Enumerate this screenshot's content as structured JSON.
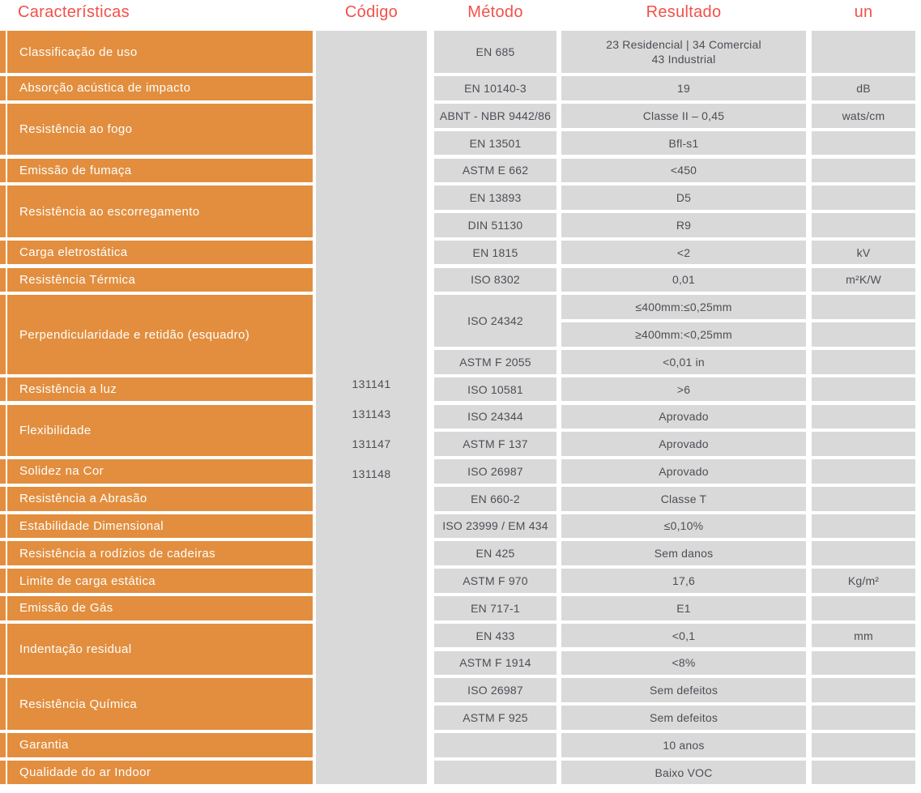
{
  "headers": {
    "caracteristicas": "Características",
    "codigo": "Código",
    "metodo": "Método",
    "resultado": "Resultado",
    "un": "un"
  },
  "colors": {
    "orange": "#E28E3E",
    "header_red": "#F2504A",
    "cell_gray": "#D9D9D9",
    "cell_text": "#4D4E55",
    "white": "#FFFFFF"
  },
  "codigo_codes": [
    "131141",
    "131143",
    "131147",
    "131148"
  ],
  "groups": [
    {
      "characteristic": "Classificação de uso",
      "entries": [
        {
          "method": "EN 685",
          "result_lines": [
            "23 Residencial | 34 Comercial",
            "43 Industrial"
          ],
          "unit": ""
        }
      ]
    },
    {
      "characteristic": "Absorção acústica de impacto",
      "entries": [
        {
          "method": "EN 10140-3",
          "result": "19",
          "unit": "dB"
        }
      ]
    },
    {
      "characteristic": "Resistência ao fogo",
      "entries": [
        {
          "method": "ABNT - NBR 9442/86",
          "result": "Classe II – 0,45",
          "unit": "wats/cm"
        },
        {
          "method": "EN 13501",
          "result": "Bfl-s1",
          "unit": ""
        }
      ]
    },
    {
      "characteristic": "Emissão de fumaça",
      "entries": [
        {
          "method": "ASTM E 662",
          "result": "<450",
          "unit": ""
        }
      ]
    },
    {
      "characteristic": "Resistência ao escorregamento",
      "entries": [
        {
          "method": "EN 13893",
          "result": "D5",
          "unit": ""
        },
        {
          "method": "DIN 51130",
          "result": "R9",
          "unit": ""
        }
      ]
    },
    {
      "characteristic": "Carga eletrostática",
      "entries": [
        {
          "method": "EN 1815",
          "result": "<2",
          "unit": "kV"
        }
      ]
    },
    {
      "characteristic": "Resistência Térmica",
      "entries": [
        {
          "method": "ISO 8302",
          "result": "0,01",
          "unit": "m²K/W"
        }
      ]
    },
    {
      "characteristic": "Perpendicularidade e retidão (esquadro)",
      "entries": [
        {
          "method": "ISO 24342",
          "method_rowspan": 2,
          "result": "≤400mm:≤0,25mm",
          "unit": ""
        },
        {
          "method": null,
          "result": "≥400mm:<0,25mm",
          "unit": ""
        },
        {
          "method": "ASTM F 2055",
          "result": "<0,01 in",
          "unit": ""
        }
      ]
    },
    {
      "characteristic": "Resistência a luz",
      "entries": [
        {
          "method": "ISO 10581",
          "result": ">6",
          "unit": ""
        }
      ]
    },
    {
      "characteristic": "Flexibilidade",
      "entries": [
        {
          "method": "ISO 24344",
          "result": "Aprovado",
          "unit": ""
        },
        {
          "method": "ASTM F 137",
          "result": "Aprovado",
          "unit": ""
        }
      ]
    },
    {
      "characteristic": "Solidez na Cor",
      "entries": [
        {
          "method": "ISO 26987",
          "result": "Aprovado",
          "unit": ""
        }
      ]
    },
    {
      "characteristic": "Resistência a Abrasão",
      "entries": [
        {
          "method": "EN 660-2",
          "result": "Classe T",
          "unit": ""
        }
      ]
    },
    {
      "characteristic": "Estabilidade Dimensional",
      "entries": [
        {
          "method": "ISO 23999 / EM 434",
          "result": "≤0,10%",
          "unit": ""
        }
      ]
    },
    {
      "characteristic": "Resistência a rodízios de cadeiras",
      "entries": [
        {
          "method": "EN 425",
          "result": "Sem danos",
          "unit": ""
        }
      ]
    },
    {
      "characteristic": "Limite de carga estática",
      "entries": [
        {
          "method": "ASTM F 970",
          "result": "17,6",
          "unit": "Kg/m²"
        }
      ]
    },
    {
      "characteristic": "Emissão de Gás",
      "entries": [
        {
          "method": "EN 717-1",
          "result": "E1",
          "unit": ""
        }
      ]
    },
    {
      "characteristic": "Indentação residual",
      "entries": [
        {
          "method": "EN 433",
          "result": "<0,1",
          "unit": "mm"
        },
        {
          "method": "ASTM F 1914",
          "result": "<8%",
          "unit": ""
        }
      ]
    },
    {
      "characteristic": "Resistência Química",
      "entries": [
        {
          "method": "ISO 26987",
          "result": "Sem defeitos",
          "unit": ""
        },
        {
          "method": "ASTM F 925",
          "result": "Sem defeitos",
          "unit": ""
        }
      ]
    },
    {
      "characteristic": "Garantia",
      "entries": [
        {
          "method": "",
          "result": "10 anos",
          "unit": ""
        }
      ]
    },
    {
      "characteristic": "Qualidade do ar Indoor",
      "entries": [
        {
          "method": "",
          "result": "Baixo VOC",
          "unit": ""
        }
      ]
    }
  ]
}
